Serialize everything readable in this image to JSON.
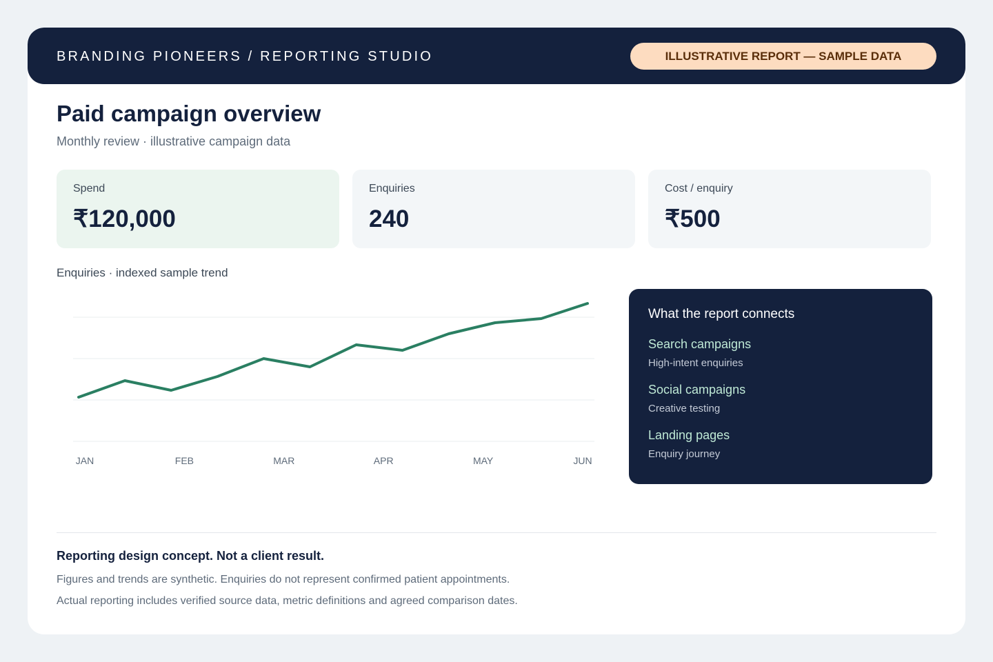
{
  "header": {
    "brand": "BRANDING PIONEERS / REPORTING STUDIO",
    "badge": "ILLUSTRATIVE REPORT — SAMPLE DATA"
  },
  "title": "Paid campaign overview",
  "subtitle": "Monthly review · illustrative campaign data",
  "kpis": [
    {
      "label": "Spend",
      "value": "₹120,000"
    },
    {
      "label": "Enquiries",
      "value": "240"
    },
    {
      "label": "Cost / enquiry",
      "value": "₹500"
    }
  ],
  "chart_data": {
    "type": "line",
    "title": "Enquiries · indexed sample trend",
    "categories": [
      "JAN",
      null,
      "FEB",
      null,
      "MAR",
      null,
      "APR",
      null,
      "MAY",
      null,
      "JUN",
      null
    ],
    "values": [
      32,
      44,
      37,
      47,
      60,
      54,
      70,
      66,
      78,
      86,
      89,
      100
    ],
    "color": "#2a7f62",
    "ylim": [
      0,
      100
    ],
    "yticks": [
      0,
      30,
      60,
      90
    ],
    "grid": true
  },
  "panel": {
    "title": "What the report connects",
    "items": [
      {
        "name": "Search campaigns",
        "desc": "High-intent enquiries"
      },
      {
        "name": "Social campaigns",
        "desc": "Creative testing"
      },
      {
        "name": "Landing pages",
        "desc": "Enquiry journey"
      }
    ]
  },
  "footer": {
    "heading": "Reporting design concept. Not a client result.",
    "lines": [
      "Figures and trends are synthetic. Enquiries do not represent confirmed patient appointments.",
      "Actual reporting includes verified source data, metric definitions and agreed comparison dates."
    ]
  }
}
